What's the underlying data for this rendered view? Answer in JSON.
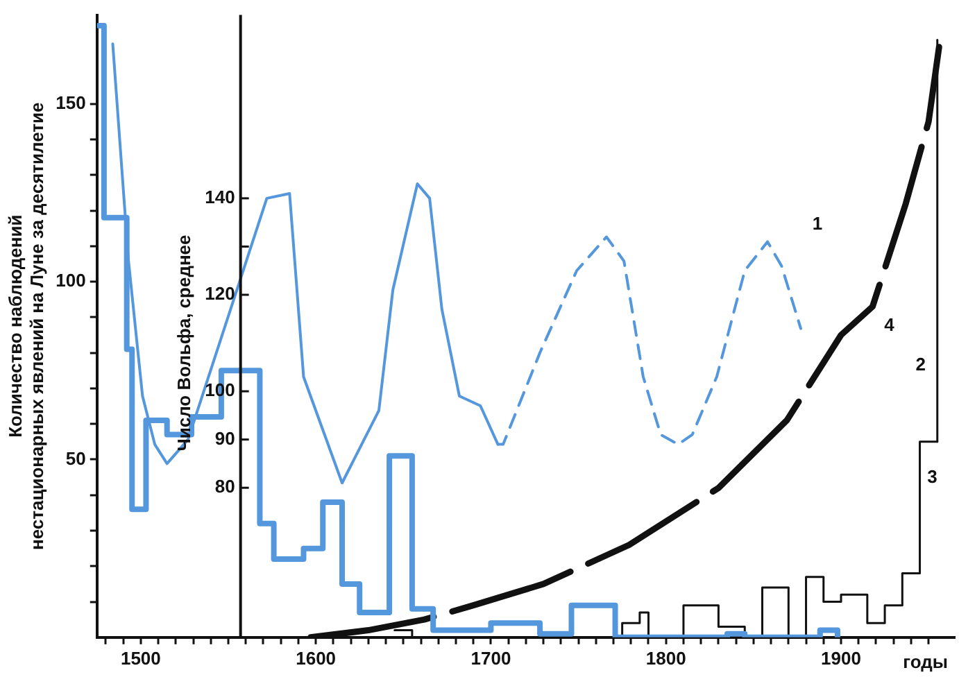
{
  "chart_data": {
    "type": "line",
    "xlabel": "годы",
    "ylabel": "Количество наблюдений нестационарных явлений на Луне за десятилетие",
    "y2label": "Число Вольфа, среднее",
    "xlim": [
      1475,
      1965
    ],
    "xticks": [
      {
        "value": 1480,
        "label": null
      },
      {
        "value": 1490,
        "label": null
      },
      1500,
      {
        "value": 1510,
        "label": null
      },
      {
        "value": 1520,
        "label": null
      },
      {
        "value": 1530,
        "label": null
      },
      {
        "value": 1540,
        "label": null
      },
      {
        "value": 1550,
        "label": null
      },
      {
        "value": 1560,
        "label": null
      },
      {
        "value": 1570,
        "label": null
      },
      {
        "value": 1580,
        "label": null
      },
      {
        "value": 1590,
        "label": null
      },
      1600,
      {
        "value": 1610,
        "label": null
      },
      {
        "value": 1620,
        "label": null
      },
      {
        "value": 1630,
        "label": null
      },
      {
        "value": 1640,
        "label": null
      },
      {
        "value": 1650,
        "label": null
      },
      {
        "value": 1660,
        "label": null
      },
      {
        "value": 1670,
        "label": null
      },
      {
        "value": 1680,
        "label": null
      },
      {
        "value": 1690,
        "label": null
      },
      1700,
      {
        "value": 1710,
        "label": null
      },
      {
        "value": 1720,
        "label": null
      },
      {
        "value": 1730,
        "label": null
      },
      {
        "value": 1740,
        "label": null
      },
      {
        "value": 1750,
        "label": null
      },
      {
        "value": 1760,
        "label": null
      },
      {
        "value": 1770,
        "label": null
      },
      {
        "value": 1780,
        "label": null
      },
      {
        "value": 1790,
        "label": null
      },
      1800,
      {
        "value": 1810,
        "label": null
      },
      {
        "value": 1820,
        "label": null
      },
      {
        "value": 1830,
        "label": null
      },
      {
        "value": 1840,
        "label": null
      },
      {
        "value": 1850,
        "label": null
      },
      {
        "value": 1860,
        "label": null
      },
      {
        "value": 1870,
        "label": null
      },
      {
        "value": 1880,
        "label": null
      },
      {
        "value": 1890,
        "label": null
      },
      1900,
      {
        "value": 1910,
        "label": null
      },
      {
        "value": 1920,
        "label": null
      },
      {
        "value": 1930,
        "label": null
      },
      {
        "value": 1940,
        "label": null
      },
      {
        "value": 1950,
        "label": null
      }
    ],
    "ylim": [
      0,
      175
    ],
    "yticks": [
      {
        "value": 10,
        "label": null
      },
      {
        "value": 20,
        "label": null
      },
      {
        "value": 30,
        "label": null
      },
      {
        "value": 40,
        "label": null
      },
      50,
      {
        "value": 60,
        "label": null
      },
      {
        "value": 70,
        "label": null
      },
      {
        "value": 80,
        "label": null
      },
      {
        "value": 90,
        "label": null
      },
      100,
      {
        "value": 110,
        "label": null
      },
      {
        "value": 120,
        "label": null
      },
      {
        "value": 130,
        "label": null
      },
      {
        "value": 140,
        "label": null
      },
      150
    ],
    "y2lim": [
      49,
      178
    ],
    "y2ticks": [
      80,
      90,
      100,
      120,
      {
        "value": 130,
        "label": null
      },
      140
    ],
    "grid": false,
    "legend": false,
    "marker": "none",
    "series": [
      {
        "axis": "y2",
        "color": "#5597dc",
        "line_style": "solid",
        "x": [
          1484,
          1493,
          1501,
          1508,
          1515,
          1527,
          1572,
          1585,
          1593,
          1615,
          1636,
          1644,
          1658,
          1665,
          1672,
          1682,
          1694,
          1704
        ],
        "values": [
          172,
          127,
          99,
          89,
          85,
          90,
          140,
          141,
          103,
          81,
          96,
          121,
          143,
          140,
          117,
          99,
          97,
          89
        ]
      },
      {
        "name": "1",
        "axis": "y2",
        "color": "#5597dc",
        "line_style": "dashed",
        "x": [
          1704,
          1707,
          1728,
          1749,
          1766,
          1776,
          1787,
          1797,
          1807,
          1815,
          1829,
          1845,
          1858,
          1866,
          1877
        ],
        "values": [
          89,
          89,
          108,
          125,
          132,
          127,
          103,
          91,
          89,
          91,
          103,
          125,
          131,
          126,
          113
        ]
      },
      {
        "type": "step",
        "color": "#5597dc",
        "line_style": "solid",
        "x": [
          1476,
          1479,
          1492,
          1495,
          1503,
          1515,
          1529,
          1546,
          1568,
          1576,
          1593,
          1604,
          1615,
          1625,
          1642,
          1655,
          1667,
          1700,
          1728,
          1746,
          1771,
          1835,
          1845,
          1888,
          1898
        ],
        "values": [
          172,
          118,
          81,
          36,
          61,
          57,
          62,
          75,
          32,
          22,
          25,
          38,
          15,
          7,
          51,
          8,
          2,
          4,
          1,
          9,
          0,
          1,
          0,
          2,
          0
        ]
      },
      {
        "name": "3",
        "type": "step",
        "color": "#111111",
        "line_style": "solid",
        "x": [
          1645,
          1655,
          1775,
          1785,
          1790,
          1810,
          1830,
          1845,
          1855,
          1870,
          1880,
          1890,
          1900,
          1915,
          1925,
          1935,
          1945,
          1955
        ],
        "values": [
          2,
          0,
          4,
          7,
          0,
          9,
          3,
          0,
          14,
          0,
          17,
          10,
          12,
          4,
          9,
          18,
          55,
          55
        ]
      },
      {
        "name": "2",
        "color": "#111111",
        "line_style": "solid",
        "x": [
          1955,
          1955
        ],
        "values": [
          55,
          168
        ]
      },
      {
        "name": "4",
        "color": "#111111",
        "line_style": "dashed",
        "x": [
          1597,
          1630,
          1662,
          1690,
          1730,
          1779,
          1830,
          1869,
          1900,
          1918,
          1937,
          1950,
          1956
        ],
        "values": [
          0,
          2,
          5,
          9,
          15,
          26,
          42,
          61,
          85,
          93,
          122,
          145,
          166
        ]
      }
    ]
  }
}
